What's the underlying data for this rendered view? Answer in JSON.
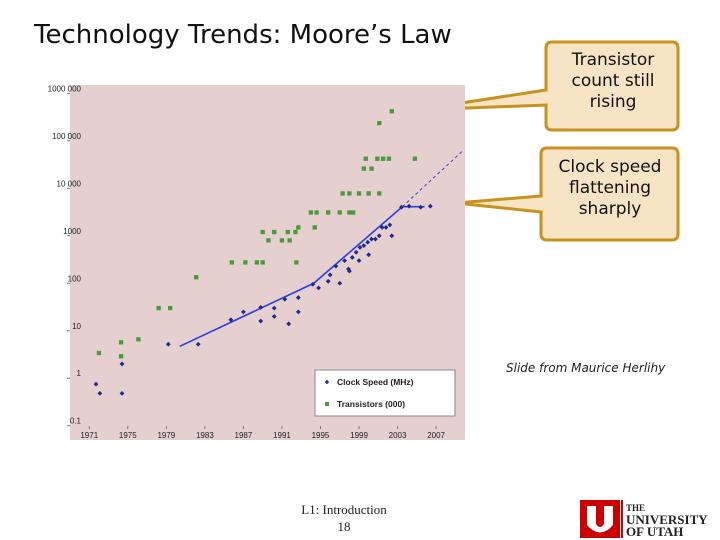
{
  "slide": {
    "title": "Technology Trends: Moore’s Law",
    "callouts": [
      "Transistor count still rising",
      "Clock speed flattening sharply"
    ],
    "credit": "Slide from Maurice Herlihy",
    "footer": {
      "course": "L1: Introduction",
      "page": "18"
    },
    "logo": [
      "THE",
      "UNIVERSITY",
      "OF UTAH"
    ]
  },
  "chart_data": {
    "type": "scatter",
    "log_y": true,
    "grid": false,
    "legend": "lower right",
    "background": "#e6cfcf",
    "xlim": [
      1969,
      2010
    ],
    "xticks": [
      1971,
      1975,
      1979,
      1983,
      1987,
      1991,
      1995,
      1999,
      2003,
      2007
    ],
    "ylim": [
      0.05,
      1500000
    ],
    "yticks": [
      0.1,
      1,
      10,
      100,
      1000,
      {
        "value": 10000,
        "label": "10 000"
      },
      {
        "value": 100000,
        "label": "100 000"
      },
      {
        "value": 1000000,
        "label": "1000 000"
      }
    ],
    "series": [
      {
        "name": "Clock Speed (MHz)",
        "color": "#1c2a8c",
        "marker": "diamond",
        "x": [
          1971.7,
          1972.1,
          1974.4,
          1974.4,
          1979.2,
          1982.3,
          1985.7,
          1987,
          1988.8,
          1988.8,
          1990.2,
          1990.2,
          1991.3,
          1991.7,
          1992.7,
          1992.7,
          1994.2,
          1994.8,
          1995.8,
          1996,
          1997,
          1998,
          1999,
          2000,
          1996.6,
          1997.5,
          1997.9,
          1998.3,
          1998.7,
          1999.1,
          1999.5,
          1999.9,
          2000.3,
          2000.7,
          2001.1,
          2001.4,
          2001.8,
          2002.2,
          2002.4,
          2003.4,
          2004.2,
          2005.4,
          2006.4
        ],
        "values": [
          0.75,
          0.48,
          0.48,
          2,
          5.2,
          5.2,
          17,
          25,
          16,
          31,
          30,
          20,
          46,
          14,
          25,
          50,
          95,
          80,
          110,
          150,
          100,
          180,
          300,
          400,
          230,
          300,
          200,
          350,
          450,
          570,
          620,
          730,
          850,
          850,
          1000,
          1500,
          1500,
          1700,
          1000,
          4000,
          4200,
          4000,
          4200
        ]
      },
      {
        "name": "Transistors (000)",
        "color": "#4a9a3a",
        "marker": "square",
        "x": [
          1972,
          1974.3,
          1974.3,
          1976.1,
          1978.2,
          1979.4,
          1982.1,
          1985.8,
          1987.2,
          1988.4,
          1989,
          1989,
          1990.2,
          1989.6,
          1991,
          1991.8,
          1991.6,
          1992.4,
          1992.5,
          1992.7,
          1994,
          1994.4,
          1994.6,
          1995.8,
          1997,
          1998,
          1998.4,
          1997.3,
          1998,
          1999,
          2000,
          2001.1,
          1999.5,
          2000.3,
          1999.7,
          2000.9,
          2001.5,
          2002.1,
          2004.8,
          2001.1,
          2002.4
        ],
        "values": [
          3.4,
          5.7,
          2.9,
          6.6,
          30,
          30,
          134,
          275,
          275,
          275,
          275,
          1200,
          1200,
          800,
          800,
          800,
          1200,
          1200,
          275,
          1500,
          3100,
          1500,
          3100,
          3100,
          3100,
          3100,
          3100,
          7800,
          7800,
          7800,
          7800,
          7800,
          26000,
          26000,
          42000,
          42000,
          42000,
          42000,
          42000,
          236000,
          420000
        ]
      }
    ],
    "lines": [
      {
        "color": "#2b3fe0",
        "dashed": false,
        "x": [
          1980.4,
          1994.3,
          2003.5,
          2005.8
        ],
        "values": [
          4.7,
          100,
          4100,
          4100
        ]
      },
      {
        "color": "#2b3fe0",
        "dashed": true,
        "x": [
          2003.5,
          2009.7
        ],
        "values": [
          4100,
          60000
        ]
      }
    ]
  }
}
